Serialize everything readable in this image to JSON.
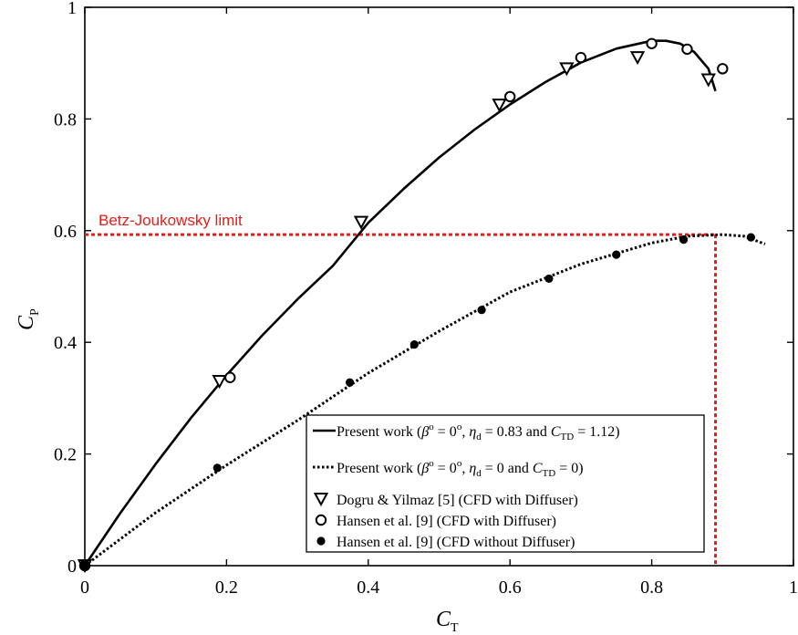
{
  "chart_data": {
    "type": "line",
    "xlabel": "C",
    "xlabel_sub": "T",
    "ylabel": "C",
    "ylabel_sub": "P",
    "xlim": [
      0,
      1
    ],
    "ylim": [
      0,
      1
    ],
    "xticks": [
      0,
      0.2,
      0.4,
      0.6,
      0.8,
      1
    ],
    "xtick_labels": [
      "0",
      "0.2",
      "0.4",
      "0.6",
      "0.8",
      "1"
    ],
    "yticks": [
      0,
      0.2,
      0.4,
      0.6,
      0.8,
      1
    ],
    "ytick_labels": [
      "0",
      "0.2",
      "0.4",
      "0.6",
      "0.8",
      "1"
    ],
    "grid": false,
    "legend_placement": "bottom-right",
    "series": [
      {
        "kind": "line",
        "style": "solid",
        "color": "#000000",
        "legend": {
          "pre": "Present work (",
          "beta": "β",
          "beta_sup": "o",
          "eq1": " = 0",
          "eq1_sup": "o",
          "eq1_end": ", ",
          "eta": "η",
          "eta_sub": "d",
          "eq2": " = 0.83 and  ",
          "c": "C",
          "c_sub": "TD",
          "eq3": " = 1.12)"
        },
        "x": [
          0,
          0.05,
          0.1,
          0.15,
          0.2,
          0.25,
          0.3,
          0.35,
          0.4,
          0.45,
          0.5,
          0.55,
          0.6,
          0.65,
          0.7,
          0.75,
          0.8,
          0.82,
          0.84,
          0.86,
          0.88,
          0.89
        ],
        "y": [
          0,
          0.094,
          0.182,
          0.265,
          0.341,
          0.412,
          0.477,
          0.537,
          0.614,
          0.675,
          0.731,
          0.781,
          0.826,
          0.866,
          0.901,
          0.926,
          0.94,
          0.94,
          0.935,
          0.92,
          0.89,
          0.85
        ]
      },
      {
        "kind": "line",
        "style": "dotted",
        "color": "#000000",
        "legend": {
          "pre": "Present work (",
          "beta": "β",
          "beta_sup": "o",
          "eq1": " = 0",
          "eq1_sup": "o",
          "eq1_end": ", ",
          "eta": "η",
          "eta_sub": "d",
          "eq2": " = 0 and  ",
          "c": "C",
          "c_sub": "TD",
          "eq3": " = 0)"
        },
        "x": [
          0,
          0.1,
          0.2,
          0.3,
          0.4,
          0.5,
          0.6,
          0.7,
          0.8,
          0.85,
          0.9,
          0.93,
          0.96
        ],
        "y": [
          0,
          0.095,
          0.18,
          0.26,
          0.345,
          0.42,
          0.49,
          0.54,
          0.578,
          0.59,
          0.593,
          0.59,
          0.576
        ]
      },
      {
        "kind": "scatter",
        "marker": "triangle-down",
        "color": "#000000",
        "legend_text": "Dogru & Yilmaz [5] (CFD with Diffuser)",
        "x": [
          0,
          0.19,
          0.39,
          0.585,
          0.68,
          0.78,
          0.88
        ],
        "y": [
          0,
          0.33,
          0.615,
          0.825,
          0.89,
          0.91,
          0.87
        ]
      },
      {
        "kind": "scatter",
        "marker": "circle-open",
        "color": "#000000",
        "legend_text": "Hansen et al. [9] (CFD with Diffuser)",
        "x": [
          0,
          0.205,
          0.6,
          0.7,
          0.8,
          0.85,
          0.9
        ],
        "y": [
          0,
          0.337,
          0.84,
          0.91,
          0.935,
          0.925,
          0.89
        ]
      },
      {
        "kind": "scatter",
        "marker": "circle-filled",
        "color": "#000000",
        "legend_text": "Hansen et al. [9] (CFD without Diffuser)",
        "x": [
          0,
          0.187,
          0.374,
          0.465,
          0.56,
          0.655,
          0.75,
          0.845,
          0.94
        ],
        "y": [
          0,
          0.175,
          0.328,
          0.396,
          0.458,
          0.514,
          0.557,
          0.584,
          0.588
        ]
      }
    ],
    "annotations": [
      {
        "text": "Betz-Joukowsky limit",
        "color": "#e0201b",
        "hline_y": 0.593,
        "vline_x": 0.89
      }
    ]
  }
}
